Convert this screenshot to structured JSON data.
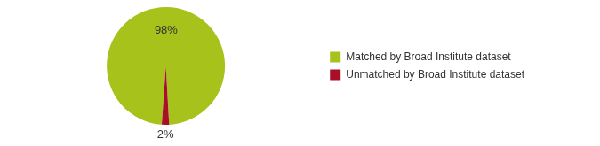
{
  "chart_data": {
    "type": "pie",
    "categories": [
      "Matched by Broad Institute dataset",
      "Unmatched by Broad Institute dataset"
    ],
    "values": [
      98,
      2
    ],
    "value_labels": [
      "98%",
      "2%"
    ],
    "colors": [
      "#a6c21b",
      "#a8102a"
    ],
    "data_labels": true,
    "legend": "right"
  }
}
